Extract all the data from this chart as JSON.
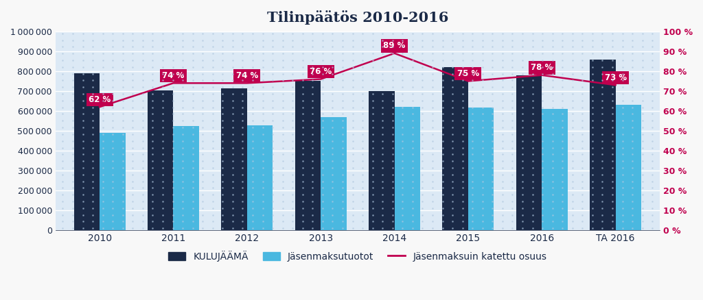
{
  "title": "Tilinpäätös 2010-2016",
  "categories": [
    "2010",
    "2011",
    "2012",
    "2013",
    "2014",
    "2015",
    "2016",
    "TA 2016"
  ],
  "kulujääma": [
    788000,
    703000,
    712000,
    750000,
    699000,
    819000,
    780000,
    857000
  ],
  "jasenmaksutuotot": [
    490000,
    525000,
    527000,
    568000,
    622000,
    617000,
    609000,
    630000
  ],
  "osuus_pct": [
    62,
    74,
    74,
    76,
    89,
    75,
    78,
    73
  ],
  "bar_color_dark": "#1b2a47",
  "bar_color_light": "#4ab8e0",
  "line_color": "#c0004e",
  "bg_color_outer": "#f0f0f0",
  "bg_color_plot": "#dce9f5",
  "grid_color": "#ffffff",
  "title_color": "#1b2a47",
  "axis_label_color": "#1b2a47",
  "ylim_left": [
    0,
    1000000
  ],
  "ylim_right": [
    0,
    100
  ],
  "legend_kulujääma": "KULUJÄÄMÄ",
  "legend_jasenmaksu": "Jäsenmaksutuotot",
  "legend_osuus": "Jäsenmaksuin katettu osuus",
  "bar_width": 0.35
}
